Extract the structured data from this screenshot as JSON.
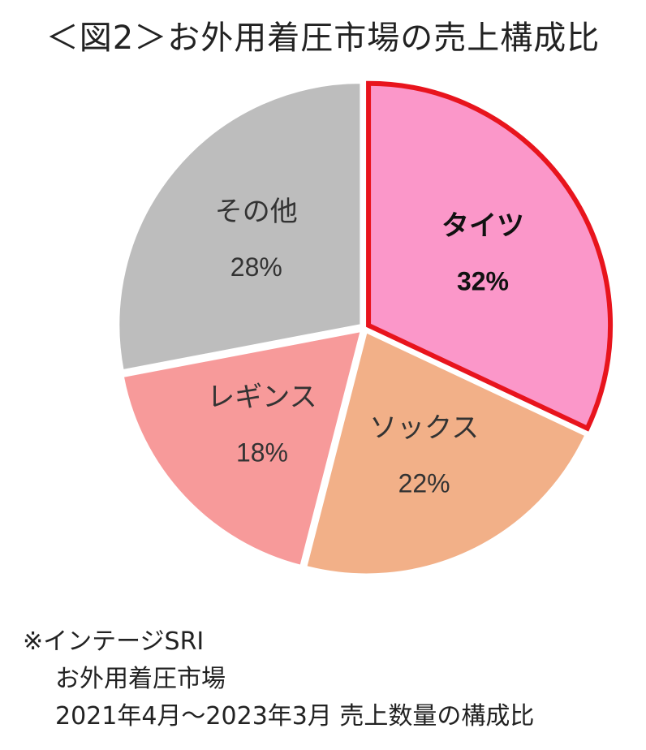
{
  "title": "＜図2＞お外用着圧市場の売上構成比",
  "chart_data": {
    "type": "pie",
    "title": "＜図2＞お外用着圧市場の売上構成比",
    "start_angle_deg": 0,
    "direction": "clockwise",
    "highlighted": "タイツ",
    "slices": [
      {
        "label": "タイツ",
        "value": 32,
        "value_label": "32%",
        "color": "#fb97c9",
        "bold": true
      },
      {
        "label": "ソックス",
        "value": 22,
        "value_label": "22%",
        "color": "#f2b088",
        "bold": false
      },
      {
        "label": "レギンス",
        "value": 18,
        "value_label": "18%",
        "color": "#f79a9a",
        "bold": false
      },
      {
        "label": "その他",
        "value": 28,
        "value_label": "28%",
        "color": "#bdbdbd",
        "bold": false
      }
    ],
    "highlight_color": "#e8141d"
  },
  "note": {
    "line1": "※インテージSRI",
    "line2": "お外用着圧市場",
    "line3": "2021年4月～2023年3月 売上数量の構成比"
  }
}
